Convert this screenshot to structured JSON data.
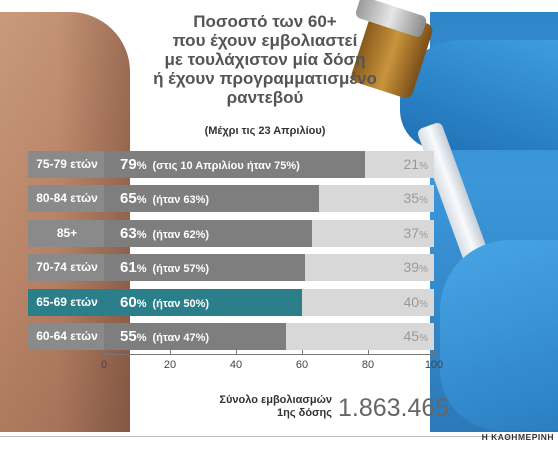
{
  "title_lines": [
    "Ποσοστό των 60+",
    "που έχουν εμβολιαστεί",
    "με τουλάχιστον μία δόση",
    "ή έχουν προγραμματισμένο",
    "ραντεβού"
  ],
  "subtitle": "(Μέχρι τις 23 Απριλίου)",
  "chart_data": {
    "type": "bar",
    "orientation": "horizontal",
    "stacked": true,
    "categories": [
      "75-79 ετών",
      "80-84 ετών",
      "85+",
      "70-74 ετών",
      "65-69 ετών",
      "60-64 ετών"
    ],
    "series": [
      {
        "values": [
          79,
          65,
          63,
          61,
          60,
          55
        ],
        "value_labels": [
          "79",
          "65",
          "63",
          "61",
          "60",
          "55"
        ],
        "notes": [
          "(στις 10 Απριλίου ήταν 75%)",
          "(ήταν 63%)",
          "(ήταν 62%)",
          "(ήταν 57%)",
          "(ήταν 50%)",
          "(ήταν 47%)"
        ],
        "color": "#7e7e7e"
      },
      {
        "values": [
          21,
          35,
          37,
          39,
          40,
          45
        ],
        "value_labels": [
          "21",
          "35",
          "37",
          "39",
          "40",
          "45"
        ],
        "color": "#d8d8d8"
      }
    ],
    "highlight_index": 4,
    "highlight_color": "#2a7f8b",
    "percent_sign": "%",
    "xlim": [
      0,
      100
    ],
    "xticks": [
      0,
      20,
      40,
      60,
      80,
      100
    ],
    "grid": false
  },
  "total": {
    "label_line1": "Σύνολο εμβολιασμών",
    "label_line2": "1ης δόσης",
    "value": "1.863.465"
  },
  "source": "Η ΚΑΘΗΜΕΡΙΝΗ"
}
